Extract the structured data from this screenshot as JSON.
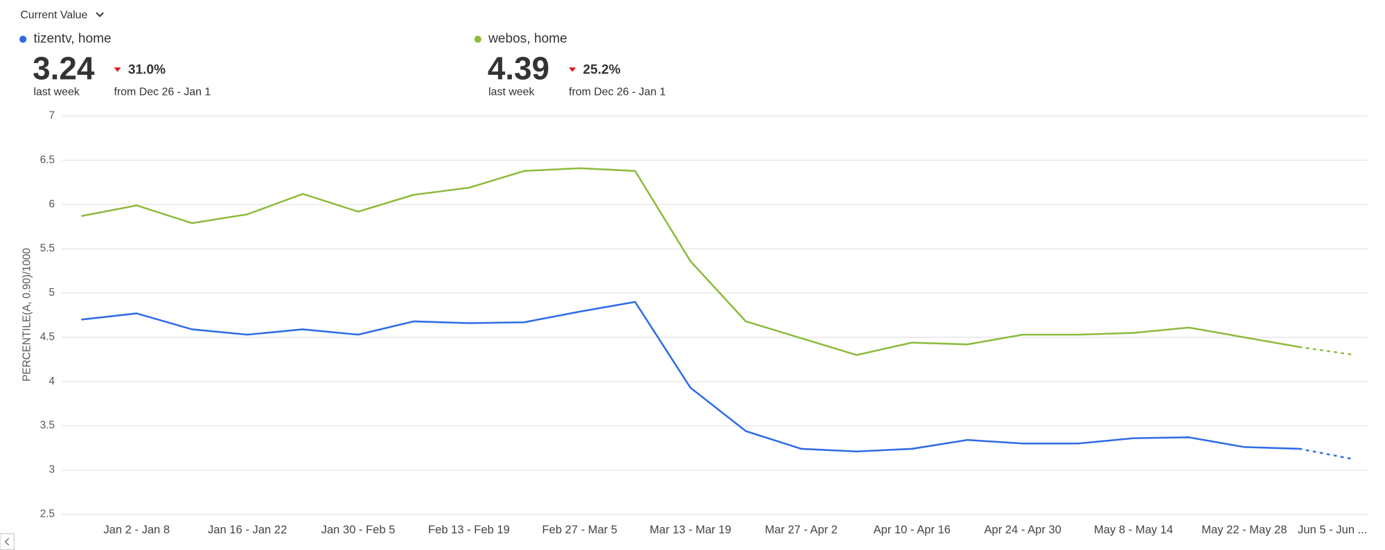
{
  "header": {
    "selector": "Current Value"
  },
  "summary": [
    {
      "name": "tizentv, home",
      "value": "3.24",
      "period": "last week",
      "change": "31.0%",
      "comparison": "from Dec 26 - Jan 1"
    },
    {
      "name": "webos, home",
      "value": "4.39",
      "period": "last week",
      "change": "25.2%",
      "comparison": "from Dec 26 - Jan 1"
    }
  ],
  "chart_data": {
    "type": "line",
    "y_label": "PERCENTILE(A, 0.90)/1000",
    "categories": [
      null,
      "Jan 2 - Jan 8",
      null,
      "Jan 16 - Jan 22",
      null,
      "Jan 30 - Feb 5",
      null,
      "Feb 13 - Feb 19",
      null,
      "Feb 27 - Mar 5",
      null,
      "Mar 13 - Mar 19",
      null,
      "Mar 27 - Apr 2",
      null,
      "Apr 10 - Apr 16",
      null,
      "Apr 24 - Apr 30",
      null,
      "May 8 - May 14",
      null,
      "May 22 - May 28",
      null,
      "Jun 5 - Jun ..."
    ],
    "series": [
      {
        "name": "tizentv, home",
        "color": "#2f6be6",
        "values": [
          4.7,
          4.77,
          4.59,
          4.53,
          4.59,
          4.53,
          4.68,
          4.66,
          4.67,
          4.79,
          4.9,
          3.93,
          3.44,
          3.24,
          3.21,
          3.24,
          3.34,
          3.3,
          3.3,
          3.36,
          3.37,
          3.26,
          3.24,
          3.12
        ]
      },
      {
        "name": "webos, home",
        "color": "#8dbb3c",
        "values": [
          5.87,
          5.99,
          5.79,
          5.89,
          6.12,
          5.92,
          6.11,
          6.19,
          6.38,
          6.41,
          6.38,
          5.36,
          4.68,
          4.49,
          4.3,
          4.44,
          4.42,
          4.53,
          4.53,
          4.55,
          4.61,
          4.5,
          4.39,
          4.3
        ]
      }
    ],
    "partial_last_point": true,
    "ylim": [
      2.5,
      7
    ],
    "yticks": [
      2.5,
      3,
      3.5,
      4,
      4.5,
      5,
      5.5,
      6,
      6.5,
      7
    ],
    "grid": true,
    "down_color": "#e0171e"
  }
}
